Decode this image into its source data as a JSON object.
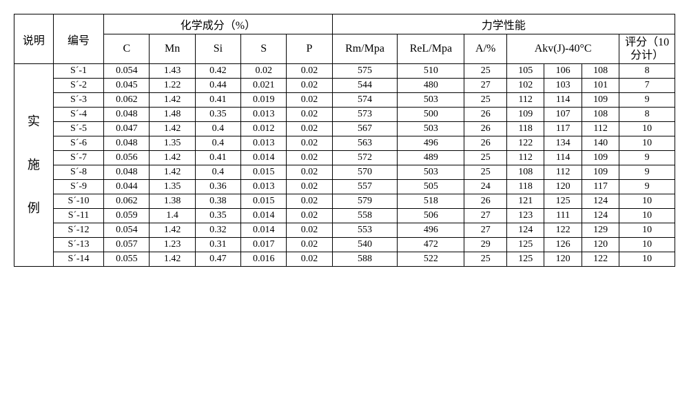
{
  "headers": {
    "desc": "说明",
    "num": "编号",
    "chem": "化学成分（%）",
    "mech": "力学性能",
    "C": "C",
    "Mn": "Mn",
    "Si": "Si",
    "S": "S",
    "P": "P",
    "Rm": "Rm/Mpa",
    "ReL": "ReL/Mpa",
    "A": "A/%",
    "Akv": "Akv(J)-40°C",
    "score": "评分（10 分计）"
  },
  "group_label": "实施例",
  "rows": [
    {
      "id": "S´-1",
      "C": "0.054",
      "Mn": "1.43",
      "Si": "0.42",
      "S": "0.02",
      "P": "0.02",
      "Rm": "575",
      "ReL": "510",
      "A": "25",
      "Akv": [
        "105",
        "106",
        "108"
      ],
      "score": "8"
    },
    {
      "id": "S´-2",
      "C": "0.045",
      "Mn": "1.22",
      "Si": "0.44",
      "S": "0.021",
      "P": "0.02",
      "Rm": "544",
      "ReL": "480",
      "A": "27",
      "Akv": [
        "102",
        "103",
        "101"
      ],
      "score": "7"
    },
    {
      "id": "S´-3",
      "C": "0.062",
      "Mn": "1.42",
      "Si": "0.41",
      "S": "0.019",
      "P": "0.02",
      "Rm": "574",
      "ReL": "503",
      "A": "25",
      "Akv": [
        "112",
        "114",
        "109"
      ],
      "score": "9"
    },
    {
      "id": "S´-4",
      "C": "0.048",
      "Mn": "1.48",
      "Si": "0.35",
      "S": "0.013",
      "P": "0.02",
      "Rm": "573",
      "ReL": "500",
      "A": "26",
      "Akv": [
        "109",
        "107",
        "108"
      ],
      "score": "8"
    },
    {
      "id": "S´-5",
      "C": "0.047",
      "Mn": "1.42",
      "Si": "0.4",
      "S": "0.012",
      "P": "0.02",
      "Rm": "567",
      "ReL": "503",
      "A": "26",
      "Akv": [
        "118",
        "117",
        "112"
      ],
      "score": "10"
    },
    {
      "id": "S´-6",
      "C": "0.048",
      "Mn": "1.35",
      "Si": "0.4",
      "S": "0.013",
      "P": "0.02",
      "Rm": "563",
      "ReL": "496",
      "A": "26",
      "Akv": [
        "122",
        "134",
        "140"
      ],
      "score": "10"
    },
    {
      "id": "S´-7",
      "C": "0.056",
      "Mn": "1.42",
      "Si": "0.41",
      "S": "0.014",
      "P": "0.02",
      "Rm": "572",
      "ReL": "489",
      "A": "25",
      "Akv": [
        "112",
        "114",
        "109"
      ],
      "score": "9"
    },
    {
      "id": "S´-8",
      "C": "0.048",
      "Mn": "1.42",
      "Si": "0.4",
      "S": "0.015",
      "P": "0.02",
      "Rm": "570",
      "ReL": "503",
      "A": "25",
      "Akv": [
        "108",
        "112",
        "109"
      ],
      "score": "9"
    },
    {
      "id": "S´-9",
      "C": "0.044",
      "Mn": "1.35",
      "Si": "0.36",
      "S": "0.013",
      "P": "0.02",
      "Rm": "557",
      "ReL": "505",
      "A": "24",
      "Akv": [
        "118",
        "120",
        "117"
      ],
      "score": "9"
    },
    {
      "id": "S´-10",
      "C": "0.062",
      "Mn": "1.38",
      "Si": "0.38",
      "S": "0.015",
      "P": "0.02",
      "Rm": "579",
      "ReL": "518",
      "A": "26",
      "Akv": [
        "121",
        "125",
        "124"
      ],
      "score": "10"
    },
    {
      "id": "S´-11",
      "C": "0.059",
      "Mn": "1.4",
      "Si": "0.35",
      "S": "0.014",
      "P": "0.02",
      "Rm": "558",
      "ReL": "506",
      "A": "27",
      "Akv": [
        "123",
        "111",
        "124"
      ],
      "score": "10"
    },
    {
      "id": "S´-12",
      "C": "0.054",
      "Mn": "1.42",
      "Si": "0.32",
      "S": "0.014",
      "P": "0.02",
      "Rm": "553",
      "ReL": "496",
      "A": "27",
      "Akv": [
        "124",
        "122",
        "129"
      ],
      "score": "10"
    },
    {
      "id": "S´-13",
      "C": "0.057",
      "Mn": "1.23",
      "Si": "0.31",
      "S": "0.017",
      "P": "0.02",
      "Rm": "540",
      "ReL": "472",
      "A": "29",
      "Akv": [
        "125",
        "126",
        "120"
      ],
      "score": "10"
    },
    {
      "id": "S´-14",
      "C": "0.055",
      "Mn": "1.42",
      "Si": "0.47",
      "S": "0.016",
      "P": "0.02",
      "Rm": "588",
      "ReL": "522",
      "A": "25",
      "Akv": [
        "125",
        "120",
        "122"
      ],
      "score": "10"
    }
  ]
}
